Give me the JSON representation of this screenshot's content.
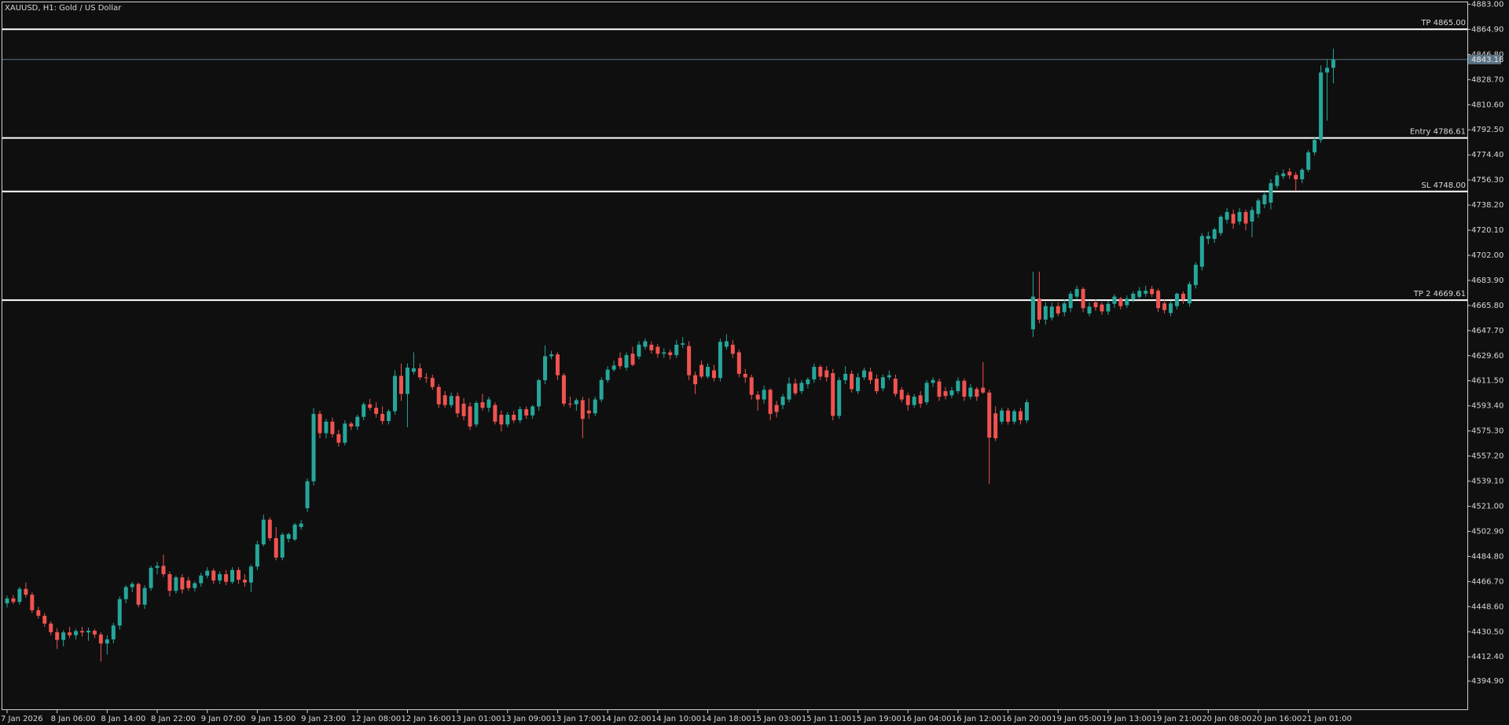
{
  "chart_data": {
    "type": "candlestick",
    "title": "XAUUSD, H1:  Gold / US Dollar",
    "bull_color": "#26a69a",
    "bear_color": "#ef5350",
    "level_color": "#ffffff",
    "bid_color": "#5a7486",
    "ylim": [
      4374.0,
      4884.4
    ],
    "yticks": [
      {
        "value": 4883,
        "label": "4883.00"
      },
      {
        "value": 4864.9,
        "label": "4864.90"
      },
      {
        "value": 4846.8,
        "label": "4846.80"
      },
      {
        "value": 4828.7,
        "label": "4828.70"
      },
      {
        "value": 4810.6,
        "label": "4810.60"
      },
      {
        "value": 4792.5,
        "label": "4792.50"
      },
      {
        "value": 4774.4,
        "label": "4774.40"
      },
      {
        "value": 4756.3,
        "label": "4756.30"
      },
      {
        "value": 4738.2,
        "label": "4738.20"
      },
      {
        "value": 4720.1,
        "label": "4720.10"
      },
      {
        "value": 4702,
        "label": "4702.00"
      },
      {
        "value": 4683.9,
        "label": "4683.90"
      },
      {
        "value": 4665.8,
        "label": "4665.80"
      },
      {
        "value": 4647.7,
        "label": "4647.70"
      },
      {
        "value": 4629.6,
        "label": "4629.60"
      },
      {
        "value": 4611.5,
        "label": "4611.50"
      },
      {
        "value": 4593.4,
        "label": "4593.40"
      },
      {
        "value": 4575.3,
        "label": "4575.30"
      },
      {
        "value": 4557.2,
        "label": "4557.20"
      },
      {
        "value": 4539.1,
        "label": "4539.10"
      },
      {
        "value": 4521,
        "label": "4521.00"
      },
      {
        "value": 4502.9,
        "label": "4502.90"
      },
      {
        "value": 4484.8,
        "label": "4484.80"
      },
      {
        "value": 4466.7,
        "label": "4466.70"
      },
      {
        "value": 4448.6,
        "label": "4448.60"
      },
      {
        "value": 4430.5,
        "label": "4430.50"
      },
      {
        "value": 4412.4,
        "label": "4412.40"
      },
      {
        "value": 4394.9,
        "label": "4394.90"
      }
    ],
    "levels": [
      {
        "label": "TP 4865.00",
        "value": 4865
      },
      {
        "label": "Entry 4786.61",
        "value": 4786.61
      },
      {
        "label": "SL 4748.00",
        "value": 4748
      },
      {
        "label": "TP 2 4669.61",
        "value": 4669.61
      }
    ],
    "bid": {
      "value": 4843.18,
      "label": "4843.18"
    },
    "categories": [
      "7 Jan 2026",
      null,
      null,
      null,
      null,
      null,
      null,
      null,
      "8 Jan 06:00",
      null,
      null,
      null,
      null,
      null,
      null,
      null,
      "8 Jan 14:00",
      null,
      null,
      null,
      null,
      null,
      null,
      null,
      "8 Jan 22:00",
      null,
      null,
      null,
      null,
      null,
      null,
      null,
      "9 Jan 07:00",
      null,
      null,
      null,
      null,
      null,
      null,
      null,
      "9 Jan 15:00",
      null,
      null,
      null,
      null,
      null,
      null,
      null,
      "9 Jan 23:00",
      null,
      null,
      null,
      null,
      null,
      null,
      null,
      "12 Jan 08:00",
      null,
      null,
      null,
      null,
      null,
      null,
      null,
      "12 Jan 16:00",
      null,
      null,
      null,
      null,
      null,
      null,
      null,
      "13 Jan 01:00",
      null,
      null,
      null,
      null,
      null,
      null,
      null,
      "13 Jan 09:00",
      null,
      null,
      null,
      null,
      null,
      null,
      null,
      "13 Jan 17:00",
      null,
      null,
      null,
      null,
      null,
      null,
      null,
      "14 Jan 02:00",
      null,
      null,
      null,
      null,
      null,
      null,
      null,
      "14 Jan 10:00",
      null,
      null,
      null,
      null,
      null,
      null,
      null,
      "14 Jan 18:00",
      null,
      null,
      null,
      null,
      null,
      null,
      null,
      "15 Jan 03:00",
      null,
      null,
      null,
      null,
      null,
      null,
      null,
      "15 Jan 11:00",
      null,
      null,
      null,
      null,
      null,
      null,
      null,
      "15 Jan 19:00",
      null,
      null,
      null,
      null,
      null,
      null,
      null,
      "16 Jan 04:00",
      null,
      null,
      null,
      null,
      null,
      null,
      null,
      "16 Jan 12:00",
      null,
      null,
      null,
      null,
      null,
      null,
      null,
      "16 Jan 20:00",
      null,
      null,
      null,
      null,
      null,
      null,
      null,
      "19 Jan 05:00",
      null,
      null,
      null,
      null,
      null,
      null,
      null,
      "19 Jan 13:00",
      null,
      null,
      null,
      null,
      null,
      null,
      null,
      "19 Jan 21:00",
      null,
      null,
      null,
      null,
      null,
      null,
      null,
      "20 Jan 08:00",
      null,
      null,
      null,
      null,
      null,
      null,
      null,
      "20 Jan 16:00",
      null,
      null,
      null,
      null,
      null,
      null,
      null,
      "21 Jan 01:00",
      null,
      null,
      null,
      null
    ],
    "open": [
      4451.0,
      4454.5,
      4452.0,
      4461.4,
      4457.2,
      4446.0,
      4442.0,
      4436.4,
      4430.2,
      4424.6,
      4430.0,
      4428.0,
      4431.0,
      4430.0,
      4431.2,
      4428.5,
      4422.0,
      4425.0,
      4435.0,
      4454.0,
      4462.7,
      4465.0,
      4450.0,
      4462.0,
      4476.6,
      4478.0,
      4472.0,
      4460.0,
      4469.7,
      4467.5,
      4462.0,
      4465.5,
      4471.0,
      4474.5,
      4467.5,
      4472.0,
      4466.5,
      4475.0,
      4468.0,
      4466.0,
      4477.5,
      4493.5,
      4511.3,
      4498.0,
      4484.0,
      4497.5,
      4497.0,
      4506.0,
      4519.6,
      4539.0,
      4587.6,
      4573.7,
      4582.0,
      4573.0,
      4566.8,
      4580.6,
      4578.5,
      4585.5,
      4594.5,
      4592.0,
      4587.6,
      4582.5,
      4589.5,
      4615.0,
      4602.0,
      4618.0,
      4620.5,
      4614.0,
      4613.5,
      4607.0,
      4601.0,
      4594.0,
      4600.5,
      4595.0,
      4593.0,
      4580.0,
      4596.0,
      4592.0,
      4594.0,
      4587.0,
      4580.0,
      4587.0,
      4583.0,
      4591.0,
      4586.5,
      4593.0,
      4611.9,
      4629.2,
      4630.5,
      4615.5,
      4595.0,
      4594.5,
      4597.5,
      4590.0,
      4588.0,
      4598.0,
      4612.0,
      4619.5,
      4628.0,
      4621.0,
      4631.0,
      4629.0,
      4636.0,
      4637.5,
      4636.0,
      4631.0,
      4632.0,
      4630.0,
      4637.5,
      4636.5,
      4615.5,
      4623.0,
      4614.5,
      4619.0,
      4613.5,
      4636.0,
      4637.5,
      4632.0,
      4616.5,
      4614.0,
      4601.4,
      4598.0,
      4605.0,
      4594.0,
      4594.0,
      4598.0,
      4609.5,
      4604.0,
      4609.0,
      4612.5,
      4621.5,
      4619.0,
      4617.0,
      4586.2,
      4611.9,
      4616.5,
      4604.0,
      4614.0,
      4618.0,
      4613.0,
      4606.0,
      4614.0,
      4613.0,
      4605.0,
      4601.0,
      4594.0,
      4601.0,
      4596.0,
      4610.0,
      4611.0,
      4604.0,
      4601.0,
      4604.0,
      4611.5,
      4600.0,
      4605.5,
      4606.5,
      4603.0,
      4588.0,
      4582.0,
      4590.0,
      4582.0,
      4589.5,
      4583.0,
      4648.6,
      4670.8,
      4655.6,
      4657.0,
      4665.3,
      4661.0,
      4663.9,
      4672.2,
      4677.7,
      4660.0,
      4668.0,
      4666.5,
      4661.5,
      4667.0,
      4670.8,
      4666.0,
      4670.0,
      4672.0,
      4674.3,
      4677.7,
      4676.4,
      4667.3,
      4660.4,
      4665.3,
      4674.3,
      4667.3,
      4680.5,
      4693.7,
      4713.8,
      4713.8,
      4718.0,
      4727.7,
      4731.8,
      4726.3,
      4733.2,
      4726.3,
      4731.8,
      4738.8,
      4740.0,
      4752.0,
      4759.0,
      4762.3,
      4760.0,
      4756.8,
      4763.7,
      4776.2,
      4785.2,
      4833.8,
      4837.2
    ],
    "high": [
      4456.5,
      4457.0,
      4463.0,
      4466.0,
      4459.0,
      4448.5,
      4444.0,
      4438.0,
      4433.0,
      4431.5,
      4434.0,
      4432.5,
      4434.0,
      4433.5,
      4432.5,
      4430.0,
      4428.0,
      4437.0,
      4456.0,
      4464.0,
      4466.5,
      4466.0,
      4464.0,
      4478.0,
      4481.0,
      4486.0,
      4474.0,
      4471.0,
      4472.0,
      4470.0,
      4467.0,
      4473.0,
      4477.0,
      4476.0,
      4474.0,
      4475.0,
      4477.0,
      4477.0,
      4472.0,
      4479.0,
      4496.0,
      4515.0,
      4513.0,
      4506.0,
      4502.0,
      4502.0,
      4509.0,
      4511.0,
      4541.0,
      4592.0,
      4590.0,
      4584.0,
      4585.0,
      4576.0,
      4583.0,
      4582.0,
      4587.0,
      4596.0,
      4598.5,
      4596.0,
      4593.0,
      4591.0,
      4619.0,
      4624.0,
      4624.0,
      4632.0,
      4624.0,
      4617.0,
      4616.0,
      4609.0,
      4604.0,
      4603.0,
      4603.0,
      4599.0,
      4596.0,
      4597.0,
      4602.0,
      4600.0,
      4596.0,
      4590.0,
      4589.0,
      4590.0,
      4593.0,
      4593.0,
      4594.0,
      4613.0,
      4637.0,
      4633.0,
      4632.0,
      4617.0,
      4600.0,
      4599.0,
      4600.0,
      4599.0,
      4600.0,
      4614.0,
      4622.0,
      4626.0,
      4632.0,
      4632.0,
      4636.0,
      4640.0,
      4642.0,
      4640.0,
      4638.0,
      4635.0,
      4634.0,
      4641.0,
      4643.0,
      4640.0,
      4618.0,
      4626.0,
      4624.0,
      4623.0,
      4642.0,
      4645.0,
      4641.0,
      4634.0,
      4620.0,
      4616.0,
      4604.0,
      4608.0,
      4606.0,
      4597.0,
      4602.0,
      4614.0,
      4613.0,
      4612.0,
      4614.0,
      4624.0,
      4623.0,
      4622.0,
      4620.0,
      4614.0,
      4622.0,
      4619.0,
      4617.0,
      4621.0,
      4621.0,
      4616.0,
      4616.0,
      4619.0,
      4616.0,
      4607.0,
      4603.0,
      4602.0,
      4604.0,
      4612.0,
      4614.0,
      4613.0,
      4607.0,
      4607.0,
      4614.0,
      4613.0,
      4609.0,
      4607.0,
      4625.0,
      4605.0,
      4593.0,
      4592.0,
      4592.0,
      4591.0,
      4592.0,
      4598.0,
      4690.0,
      4690.2,
      4668.0,
      4668.0,
      4668.0,
      4670.0,
      4676.0,
      4680.0,
      4679.0,
      4668.0,
      4670.0,
      4668.0,
      4669.0,
      4674.0,
      4672.0,
      4673.0,
      4676.0,
      4679.0,
      4680.0,
      4680.0,
      4678.0,
      4670.0,
      4669.0,
      4675.0,
      4676.0,
      4683.0,
      4697.0,
      4718.0,
      4719.0,
      4722.0,
      4731.0,
      4736.0,
      4735.0,
      4736.0,
      4735.0,
      4737.0,
      4743.0,
      4748.0,
      4757.0,
      4762.0,
      4764.0,
      4765.0,
      4762.0,
      4765.0,
      4778.0,
      4787.0,
      4839.0,
      4843.0,
      4851.1
    ],
    "low": [
      4448.0,
      4450.5,
      4450.0,
      4455.0,
      4444.0,
      4440.0,
      4434.0,
      4428.0,
      4418.0,
      4420.0,
      4426.0,
      4425.0,
      4427.0,
      4424.0,
      4426.0,
      4409.0,
      4414.0,
      4422.0,
      4432.0,
      4451.0,
      4459.0,
      4448.0,
      4447.0,
      4460.0,
      4472.0,
      4470.0,
      4456.0,
      4458.0,
      4458.0,
      4460.0,
      4459.5,
      4463.0,
      4469.0,
      4465.0,
      4465.0,
      4464.0,
      4465.0,
      4465.0,
      4463.0,
      4459.0,
      4475.0,
      4492.0,
      4496.0,
      4482.0,
      4482.0,
      4495.0,
      4496.0,
      4504.0,
      4517.0,
      4536.0,
      4570.0,
      4570.0,
      4570.5,
      4564.0,
      4565.0,
      4576.0,
      4576.0,
      4583.0,
      4590.0,
      4585.0,
      4580.0,
      4580.0,
      4587.0,
      4597.0,
      4578.0,
      4616.0,
      4612.0,
      4610.0,
      4605.0,
      4592.0,
      4592.0,
      4592.0,
      4585.0,
      4583.0,
      4576.0,
      4578.0,
      4590.0,
      4589.0,
      4580.0,
      4575.0,
      4578.0,
      4581.0,
      4581.0,
      4584.0,
      4584.0,
      4590.0,
      4609.0,
      4627.0,
      4612.0,
      4593.0,
      4592.0,
      4590.0,
      4570.0,
      4584.0,
      4586.0,
      4596.0,
      4610.0,
      4618.0,
      4620.0,
      4619.0,
      4622.0,
      4627.0,
      4634.0,
      4631.0,
      4628.0,
      4628.0,
      4627.0,
      4628.0,
      4635.0,
      4612.0,
      4602.0,
      4613.0,
      4613.0,
      4611.0,
      4611.0,
      4634.0,
      4628.0,
      4614.0,
      4610.0,
      4598.0,
      4590.0,
      4595.0,
      4583.0,
      4585.0,
      4591.0,
      4596.0,
      4601.0,
      4602.0,
      4606.0,
      4610.0,
      4612.0,
      4611.0,
      4583.0,
      4584.0,
      4609.0,
      4603.0,
      4602.0,
      4612.0,
      4609.0,
      4602.0,
      4604.0,
      4612.0,
      4600.0,
      4596.0,
      4590.0,
      4592.0,
      4592.0,
      4594.0,
      4607.0,
      4597.0,
      4598.0,
      4599.0,
      4602.0,
      4597.0,
      4598.0,
      4597.0,
      4602.0,
      4537.0,
      4568.0,
      4580.0,
      4580.0,
      4580.0,
      4580.0,
      4581.0,
      4643.0,
      4653.0,
      4652.0,
      4655.0,
      4658.0,
      4658.0,
      4661.0,
      4670.0,
      4661.0,
      4658.0,
      4662.0,
      4659.0,
      4659.0,
      4664.0,
      4663.0,
      4664.0,
      4668.0,
      4670.0,
      4672.0,
      4672.0,
      4661.0,
      4660.0,
      4658.0,
      4663.0,
      4667.0,
      4665.0,
      4678.0,
      4691.0,
      4710.0,
      4711.0,
      4716.0,
      4725.0,
      4721.0,
      4724.0,
      4720.0,
      4715.0,
      4729.0,
      4736.0,
      4735.0,
      4750.0,
      4757.0,
      4757.0,
      4748.5,
      4754.0,
      4762.0,
      4774.0,
      4783.0,
      4799.1,
      4826.0
    ],
    "close": [
      4454.5,
      4452.0,
      4461.4,
      4457.2,
      4446.0,
      4442.0,
      4436.4,
      4430.2,
      4424.6,
      4430.0,
      4428.0,
      4431.0,
      4430.0,
      4431.2,
      4428.5,
      4422.0,
      4425.0,
      4435.0,
      4454.0,
      4462.7,
      4465.0,
      4450.0,
      4462.0,
      4476.6,
      4478.0,
      4472.0,
      4460.0,
      4469.7,
      4461.0,
      4462.0,
      4465.5,
      4471.0,
      4474.5,
      4467.5,
      4472.0,
      4466.5,
      4475.0,
      4468.0,
      4466.0,
      4477.5,
      4493.5,
      4511.3,
      4498.0,
      4484.0,
      4500.5,
      4500.9,
      4507.8,
      4508.5,
      4539.0,
      4587.6,
      4573.7,
      4582.0,
      4573.0,
      4566.8,
      4580.6,
      4578.5,
      4585.5,
      4594.5,
      4592.0,
      4587.6,
      4582.5,
      4589.5,
      4615.0,
      4602.0,
      4621.0,
      4620.5,
      4614.0,
      4613.5,
      4607.0,
      4594.5,
      4594.0,
      4600.5,
      4588.0,
      4586.0,
      4578.5,
      4595.5,
      4592.0,
      4598.0,
      4582.0,
      4580.0,
      4587.0,
      4583.0,
      4591.0,
      4586.5,
      4593.0,
      4611.9,
      4629.2,
      4630.5,
      4615.5,
      4595.0,
      4594.5,
      4597.5,
      4584.0,
      4588.0,
      4598.0,
      4612.0,
      4619.5,
      4622.5,
      4622.0,
      4630.0,
      4623.0,
      4637.5,
      4640.0,
      4633.5,
      4631.0,
      4632.0,
      4630.0,
      4637.5,
      4638.5,
      4615.5,
      4609.0,
      4614.5,
      4621.5,
      4613.5,
      4639.6,
      4640.0,
      4631.0,
      4616.5,
      4614.0,
      4601.4,
      4598.0,
      4605.0,
      4587.6,
      4589.0,
      4600.0,
      4609.5,
      4602.5,
      4610.0,
      4612.5,
      4621.5,
      4614.5,
      4614.0,
      4586.2,
      4611.9,
      4616.5,
      4605.5,
      4614.0,
      4619.0,
      4612.0,
      4604.0,
      4614.0,
      4615.5,
      4602.0,
      4598.0,
      4594.0,
      4600.0,
      4595.0,
      4610.0,
      4612.0,
      4600.0,
      4600.5,
      4604.5,
      4611.5,
      4600.0,
      4606.5,
      4600.0,
      4603.0,
      4570.5,
      4570.0,
      4590.0,
      4582.0,
      4589.5,
      4583.0,
      4596.0,
      4672.2,
      4655.6,
      4665.3,
      4665.0,
      4660.0,
      4667.3,
      4674.3,
      4677.7,
      4663.9,
      4665.0,
      4664.5,
      4661.5,
      4667.0,
      4672.2,
      4665.3,
      4670.8,
      4674.3,
      4676.4,
      4676.4,
      4674.0,
      4663.9,
      4662.5,
      4667.3,
      4674.3,
      4670.0,
      4681.2,
      4695.1,
      4715.9,
      4715.9,
      4720.7,
      4729.8,
      4733.2,
      4724.9,
      4733.2,
      4724.9,
      4734.6,
      4741.5,
      4745.7,
      4754.0,
      4759.6,
      4761.0,
      4759.6,
      4756.8,
      4763.7,
      4776.2,
      4785.2,
      4833.8,
      4837.2,
      4843.2
    ]
  }
}
